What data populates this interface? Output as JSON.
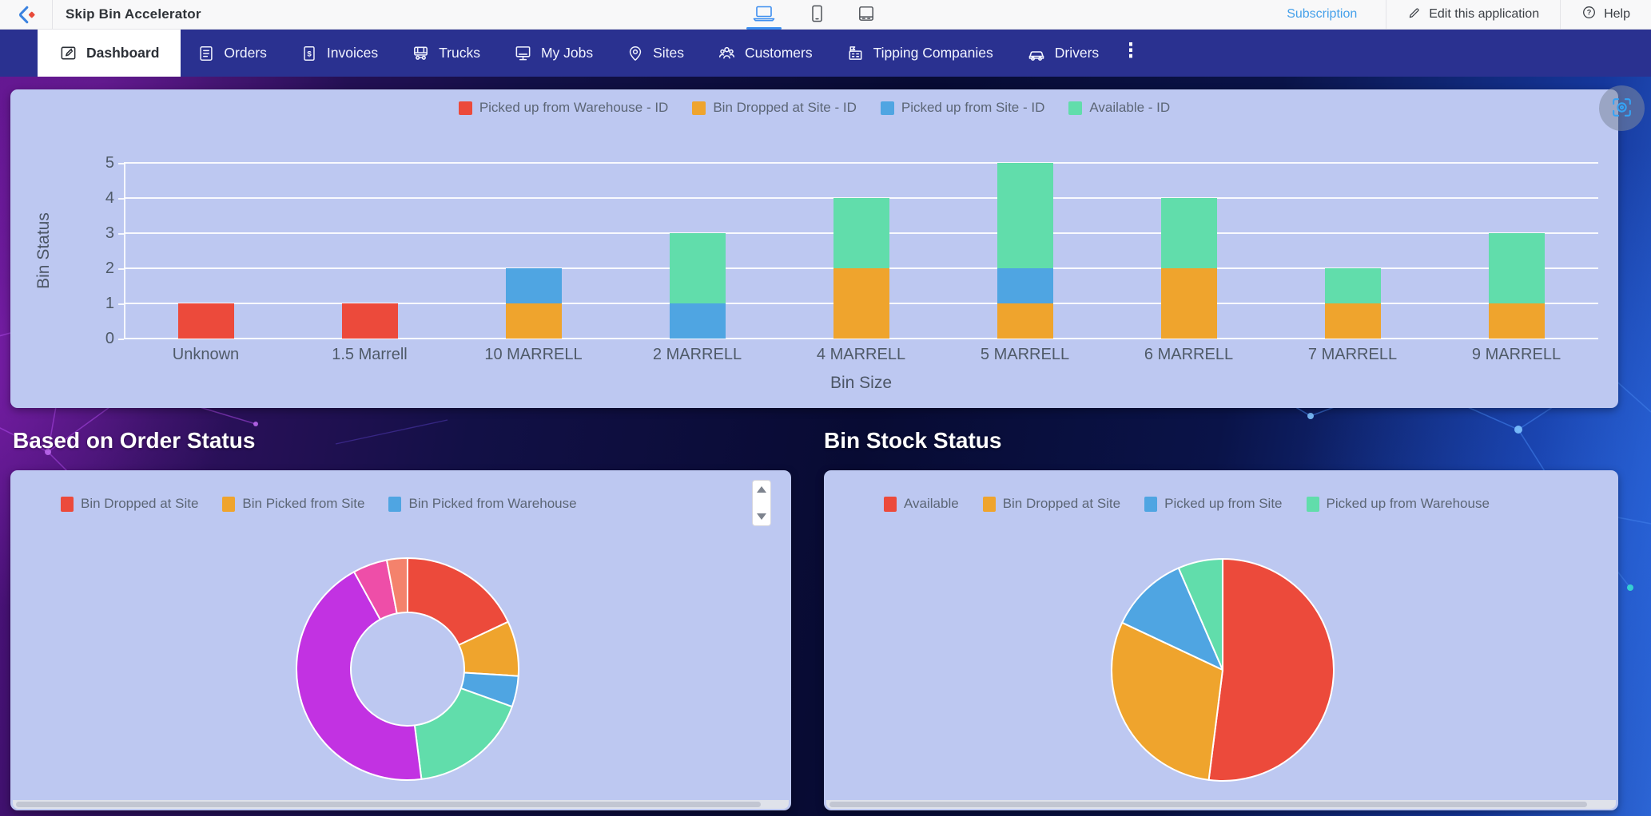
{
  "app": {
    "title": "Skip Bin Accelerator"
  },
  "topbar": {
    "subscription_label": "Subscription",
    "edit_label": "Edit this application",
    "help_label": "Help",
    "devices": [
      {
        "icon": "laptop-icon",
        "active": true
      },
      {
        "icon": "phone-icon",
        "active": false
      },
      {
        "icon": "tablet-icon",
        "active": false
      }
    ]
  },
  "nav": {
    "items": [
      {
        "label": "Dashboard",
        "icon": "dashboard-icon",
        "active": true
      },
      {
        "label": "Orders",
        "icon": "orders-icon",
        "active": false
      },
      {
        "label": "Invoices",
        "icon": "invoices-icon",
        "active": false
      },
      {
        "label": "Trucks",
        "icon": "trucks-icon",
        "active": false
      },
      {
        "label": "My Jobs",
        "icon": "myjobs-icon",
        "active": false
      },
      {
        "label": "Sites",
        "icon": "sites-icon",
        "active": false
      },
      {
        "label": "Customers",
        "icon": "customers-icon",
        "active": false
      },
      {
        "label": "Tipping Companies",
        "icon": "tipping-icon",
        "active": false
      },
      {
        "label": "Drivers",
        "icon": "drivers-icon",
        "active": false
      }
    ]
  },
  "chart_data": [
    {
      "type": "bar",
      "stacked": true,
      "xlabel": "Bin Size",
      "ylabel": "Bin Status",
      "ylim": [
        0,
        5
      ],
      "yticks": [
        0,
        1,
        2,
        3,
        4,
        5
      ],
      "grid": true,
      "legend_position": "top",
      "categories": [
        "Unknown",
        "1.5 Marrell",
        "10 MARRELL",
        "2 MARRELL",
        "4 MARRELL",
        "5 MARRELL",
        "6 MARRELL",
        "7 MARRELL",
        "9 MARRELL"
      ],
      "series": [
        {
          "name": "Picked up from Warehouse - ID",
          "color": "#ec4a3b",
          "values": [
            1,
            1,
            0,
            0,
            0,
            0,
            0,
            0,
            0
          ]
        },
        {
          "name": "Bin Dropped at Site - ID",
          "color": "#efa42d",
          "values": [
            0,
            0,
            1,
            0,
            2,
            1,
            2,
            1,
            1
          ]
        },
        {
          "name": "Picked up from Site - ID",
          "color": "#4fa5e2",
          "values": [
            0,
            0,
            1,
            1,
            0,
            1,
            0,
            0,
            0
          ]
        },
        {
          "name": "Available - ID",
          "color": "#61ddab",
          "values": [
            0,
            0,
            0,
            2,
            2,
            3,
            2,
            1,
            2
          ]
        }
      ]
    },
    {
      "type": "pie",
      "style": "donut",
      "title": "Based on Order Status",
      "legend_position": "top-left",
      "legend_scrollable": true,
      "visible_legend": [
        "Bin Dropped at Site",
        "Bin Picked from Site",
        "Bin Picked from Warehouse"
      ],
      "slices": [
        {
          "label": "Bin Dropped at Site",
          "color": "#ec4a3b",
          "percent": 18
        },
        {
          "label": "Bin Picked from Site",
          "color": "#efa42d",
          "percent": 8
        },
        {
          "label": "Bin Picked from Warehouse",
          "color": "#4fa5e2",
          "percent": 4.5
        },
        {
          "label": "",
          "color": "#61ddab",
          "percent": 17.5
        },
        {
          "label": "",
          "color": "#c232e2",
          "percent": 44
        },
        {
          "label": "",
          "color": "#ee4ea8",
          "percent": 5
        },
        {
          "label": "",
          "color": "#f4826c",
          "percent": 3
        }
      ]
    },
    {
      "type": "pie",
      "title": "Bin Stock Status",
      "legend_position": "top-left",
      "slices": [
        {
          "label": "Available",
          "color": "#ec4a3b",
          "percent": 52
        },
        {
          "label": "Bin Dropped at Site",
          "color": "#efa42d",
          "percent": 30
        },
        {
          "label": "Picked up from Site",
          "color": "#4fa5e2",
          "percent": 11.5
        },
        {
          "label": "Picked up from Warehouse",
          "color": "#61ddab",
          "percent": 6.5
        }
      ]
    }
  ]
}
